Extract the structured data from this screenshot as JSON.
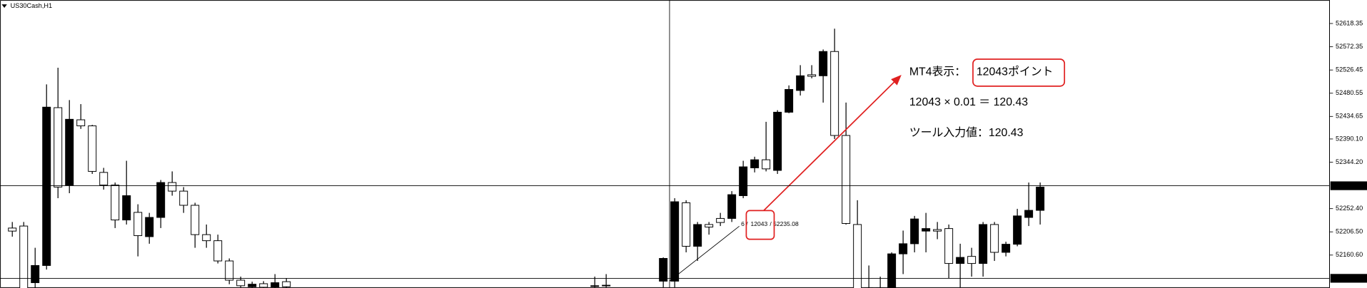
{
  "chart_data": {
    "type": "candlestick",
    "title": "US30Cash,H1",
    "bull_color": "#000000",
    "bear_color": "#ffffff",
    "ylim": [
      52095.5,
      52664.8
    ],
    "yticks": [
      52618.35,
      52572.35,
      52526.45,
      52480.55,
      52434.65,
      {
        "value": 52390.1,
        "label": "52390.10"
      },
      {
        "value": 52344.2,
        "label": "52344.20"
      },
      {
        "value": 52252.4,
        "label": "52252.40"
      },
      {
        "value": 52206.5,
        "label": "52206.50"
      },
      {
        "value": 52160.6,
        "label": "52160.60"
      }
    ],
    "price_lines": [
      52297.62,
      52114.65
    ],
    "open": [
      null,
      52214,
      52218,
      52106,
      52140,
      52452,
      52299,
      52428,
      52416,
      52324,
      52299,
      52230,
      52245,
      52197,
      52235,
      52304,
      52287,
      52259,
      52201,
      52189,
      52149,
      52111,
      52098,
      52104,
      52097,
      52108,
      null,
      null,
      null,
      null,
      null,
      null,
      null,
      null,
      null,
      null,
      null,
      null,
      null,
      null,
      null,
      null,
      null,
      null,
      null,
      null,
      null,
      null,
      null,
      null,
      null,
      null,
      52100,
      52100,
      null,
      null,
      null,
      null,
      52109,
      52109,
      52264,
      52178,
      52221,
      52233,
      52233,
      52278,
      52333,
      52349,
      52328,
      52443,
      52486,
      52517,
      52515,
      52563,
      52397,
      52221,
      52095,
      52095,
      52085,
      52163,
      52183,
      52208,
      52211,
      52213,
      52144,
      52158,
      52144,
      52221,
      52166,
      52182,
      52235,
      52249
    ],
    "high": [
      null,
      52226,
      52226,
      52175,
      52498,
      52531,
      52467,
      52459,
      52418,
      52333,
      52304,
      52347,
      52261,
      52244,
      52309,
      52326,
      52295,
      52264,
      52221,
      52201,
      52154,
      52118,
      52108,
      52109,
      52123,
      52115,
      null,
      null,
      null,
      null,
      null,
      null,
      null,
      null,
      null,
      null,
      null,
      null,
      null,
      null,
      null,
      null,
      null,
      null,
      null,
      null,
      null,
      null,
      null,
      null,
      null,
      null,
      52118,
      52123,
      null,
      null,
      null,
      null,
      52156,
      52273,
      52269,
      52226,
      52226,
      52244,
      52287,
      52347,
      52355,
      52424,
      52447,
      52496,
      52536,
      52536,
      52567,
      52608,
      52462,
      52269,
      52140,
      52118,
      52166,
      52209,
      52238,
      52244,
      52226,
      52221,
      52183,
      52175,
      52226,
      52226,
      52187,
      52252,
      52304,
      52304
    ],
    "low": [
      null,
      52197,
      52085,
      52090,
      52132,
      52273,
      52283,
      52410,
      52321,
      52290,
      52214,
      52221,
      52158,
      52183,
      52214,
      52278,
      52244,
      52175,
      52175,
      52144,
      52103,
      52096,
      52095,
      52095,
      52095,
      52095,
      null,
      null,
      null,
      null,
      null,
      null,
      null,
      null,
      null,
      null,
      null,
      null,
      null,
      null,
      null,
      null,
      null,
      null,
      null,
      null,
      null,
      null,
      null,
      null,
      null,
      null,
      52096,
      52096,
      null,
      null,
      null,
      null,
      52096,
      52096,
      52166,
      52149,
      52201,
      52218,
      52226,
      52273,
      52324,
      52326,
      52321,
      52441,
      52476,
      52510,
      52462,
      52390,
      52221,
      52085,
      52070,
      52075,
      52080,
      52123,
      52166,
      52166,
      52192,
      52115,
      52096,
      52118,
      52118,
      52149,
      52158,
      52178,
      52218,
      52221
    ],
    "close": [
      null,
      52208,
      52090,
      52140,
      52453,
      52295,
      52429,
      52416,
      52326,
      52299,
      52230,
      52278,
      52199,
      52235,
      52304,
      52287,
      52259,
      52201,
      52189,
      52149,
      52111,
      52100,
      52103,
      52097,
      52106,
      52098,
      null,
      null,
      null,
      null,
      null,
      null,
      null,
      null,
      null,
      null,
      null,
      null,
      null,
      null,
      null,
      null,
      null,
      null,
      null,
      null,
      null,
      null,
      null,
      null,
      null,
      null,
      52100,
      52101,
      null,
      null,
      null,
      null,
      52154,
      52266,
      52178,
      52221,
      52216,
      52225,
      52280,
      52335,
      52349,
      52331,
      52443,
      52488,
      52515,
      52514,
      52563,
      52397,
      52223,
      52090,
      52080,
      52085,
      52163,
      52183,
      52232,
      52213,
      52208,
      52144,
      52156,
      52144,
      52221,
      52166,
      52182,
      52238,
      52249,
      52295
    ],
    "measure_label": [
      "6 / ",
      "12043",
      " / 52235.08"
    ],
    "callout": {
      "line1": [
        "MT4表示：",
        "12043ポイント"
      ],
      "line2": "12043 × 0.01 ＝ 120.43",
      "line3": "ツール入力値：120.43"
    }
  }
}
